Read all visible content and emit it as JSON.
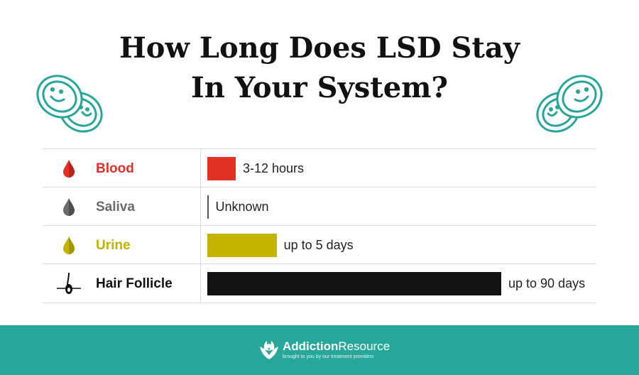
{
  "header": {
    "title_line1": "How Long Does LSD Stay",
    "title_line2": "In Your System?"
  },
  "footer": {
    "brand_part1": "Addiction",
    "brand_part2": "Resource",
    "tagline": "brought to you by our treatment providers"
  },
  "colors": {
    "blood": "#e23127",
    "saliva": "#6b6b6b",
    "urine": "#c4b300",
    "hair": "#111111",
    "teal": "#27a69a"
  },
  "chart_data": {
    "type": "bar",
    "orientation": "horizontal",
    "categories": [
      "Blood",
      "Saliva",
      "Urine",
      "Hair Follicle"
    ],
    "values_days": [
      0.5,
      0,
      5,
      90
    ],
    "value_labels": [
      "3-12 hours",
      "Unknown",
      "up to 5 days",
      "up to 90 days"
    ],
    "icons": [
      "blood-drop-icon",
      "saliva-drop-icon",
      "urine-drop-icon",
      "hair-follicle-icon"
    ]
  }
}
